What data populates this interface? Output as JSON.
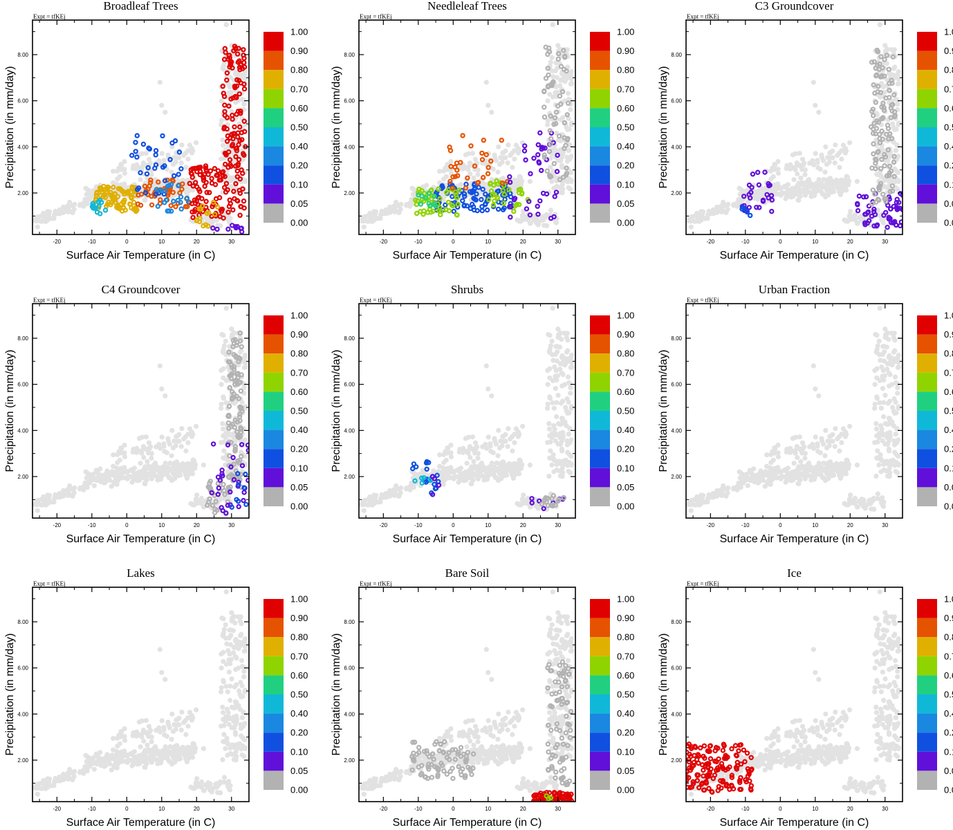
{
  "figure": {
    "expt_label": "Expt = tfKEj",
    "xlabel": "Surface Air Temperature (in C)",
    "ylabel": "Precipitation (in mm/day)",
    "x_ticks": [
      "-20",
      "-10",
      "0",
      "10",
      "20",
      "30"
    ],
    "y_ticks": [
      "2.00",
      "4.00",
      "6.00",
      "8.00"
    ],
    "xlim": [
      -27,
      35
    ],
    "ylim": [
      0.2,
      9.5
    ],
    "colorbar": {
      "labels": [
        "1.00",
        "0.90",
        "0.80",
        "0.70",
        "0.60",
        "0.50",
        "0.40",
        "0.20",
        "0.10",
        "0.05",
        "0.00"
      ],
      "colors": [
        "#e00000",
        "#e65300",
        "#e0b000",
        "#8fd400",
        "#20d080",
        "#10b8d8",
        "#1a88e0",
        "#1050e0",
        "#6010d8",
        "#b2b2b2"
      ]
    },
    "background_color": "#e2e2e2"
  },
  "chart_data": [
    {
      "type": "scatter",
      "title": "Broadleaf Trees",
      "xlabel": "Surface Air Temperature (in C)",
      "ylabel": "Precipitation (in mm/day)",
      "xlim": [
        -27,
        35
      ],
      "ylim": [
        0.2,
        9.5
      ],
      "clusters": [
        {
          "x": [
            -9,
            3
          ],
          "y": [
            1.2,
            2.3
          ],
          "value": 0.8,
          "n": 90
        },
        {
          "x": [
            3,
            18
          ],
          "y": [
            1.4,
            2.6
          ],
          "value": 0.85,
          "n": 50
        },
        {
          "x": [
            -10,
            -6
          ],
          "y": [
            1.1,
            1.7
          ],
          "value": 0.45,
          "n": 14
        },
        {
          "x": [
            0,
            16
          ],
          "y": [
            1.8,
            4.5
          ],
          "value": 0.15,
          "n": 32
        },
        {
          "x": [
            5,
            18
          ],
          "y": [
            1.2,
            2.4
          ],
          "value": 0.4,
          "n": 22
        },
        {
          "x": [
            18,
            34
          ],
          "y": [
            0.9,
            3.2
          ],
          "value": 0.95,
          "n": 110
        },
        {
          "x": [
            27.5,
            34
          ],
          "y": [
            3.0,
            8.4
          ],
          "value": 0.95,
          "n": 100
        },
        {
          "x": [
            20,
            26
          ],
          "y": [
            0.5,
            1.6
          ],
          "value": 0.75,
          "n": 15
        },
        {
          "x": [
            23,
            33
          ],
          "y": [
            0.3,
            0.6
          ],
          "value": 0.1,
          "n": 10
        }
      ]
    },
    {
      "type": "scatter",
      "title": "Needleleaf Trees",
      "xlabel": "Surface Air Temperature (in C)",
      "ylabel": "Precipitation (in mm/day)",
      "xlim": [
        -27,
        35
      ],
      "ylim": [
        0.2,
        9.5
      ],
      "clusters": [
        {
          "x": [
            -6,
            17
          ],
          "y": [
            1.2,
            2.4
          ],
          "value": 0.15,
          "n": 95
        },
        {
          "x": [
            -11,
            2
          ],
          "y": [
            1.0,
            2.2
          ],
          "value": 0.7,
          "n": 55
        },
        {
          "x": [
            10,
            22
          ],
          "y": [
            1.2,
            2.6
          ],
          "value": 0.7,
          "n": 30
        },
        {
          "x": [
            -2,
            16
          ],
          "y": [
            2.2,
            4.5
          ],
          "value": 0.85,
          "n": 30
        },
        {
          "x": [
            -10,
            -5
          ],
          "y": [
            1.3,
            2.0
          ],
          "value": 0.6,
          "n": 10
        },
        {
          "x": [
            16,
            30
          ],
          "y": [
            0.8,
            4.8
          ],
          "value": 0.07,
          "n": 40
        },
        {
          "x": [
            26,
            33
          ],
          "y": [
            2.5,
            8.5
          ],
          "value": 0.0,
          "n": 60
        }
      ]
    },
    {
      "type": "scatter",
      "title": "C3 Groundcover",
      "xlabel": "Surface Air Temperature (in C)",
      "ylabel": "Precipitation (in mm/day)",
      "xlim": [
        -27,
        35
      ],
      "ylim": [
        0.2,
        9.5
      ],
      "clusters": [
        {
          "x": [
            -11,
            -2
          ],
          "y": [
            1.0,
            2.9
          ],
          "value": 0.07,
          "n": 28
        },
        {
          "x": [
            22,
            35
          ],
          "y": [
            0.5,
            2.0
          ],
          "value": 0.07,
          "n": 55
        },
        {
          "x": [
            -11,
            -8
          ],
          "y": [
            1.0,
            1.6
          ],
          "value": 0.15,
          "n": 6
        },
        {
          "x": [
            26,
            33
          ],
          "y": [
            1.5,
            8.3
          ],
          "value": 0.0,
          "n": 110
        }
      ]
    },
    {
      "type": "scatter",
      "title": "C4 Groundcover",
      "xlabel": "Surface Air Temperature (in C)",
      "ylabel": "Precipitation (in mm/day)",
      "xlim": [
        -27,
        35
      ],
      "ylim": [
        0.2,
        9.5
      ],
      "clusters": [
        {
          "x": [
            29,
            33
          ],
          "y": [
            1.5,
            8.3
          ],
          "value": 0.0,
          "n": 100
        },
        {
          "x": [
            23,
            30
          ],
          "y": [
            0.4,
            1.8
          ],
          "value": 0.0,
          "n": 30
        },
        {
          "x": [
            24,
            35
          ],
          "y": [
            0.4,
            3.5
          ],
          "value": 0.07,
          "n": 30
        },
        {
          "x": [
            30,
            35
          ],
          "y": [
            0.6,
            2.2
          ],
          "value": 0.15,
          "n": 8
        }
      ]
    },
    {
      "type": "scatter",
      "title": "Shrubs",
      "xlabel": "Surface Air Temperature (in C)",
      "ylabel": "Precipitation (in mm/day)",
      "xlim": [
        -27,
        35
      ],
      "ylim": [
        0.2,
        9.5
      ],
      "clusters": [
        {
          "x": [
            -12,
            -4
          ],
          "y": [
            1.2,
            2.7
          ],
          "value": 0.15,
          "n": 18
        },
        {
          "x": [
            -11,
            -6
          ],
          "y": [
            1.3,
            2.0
          ],
          "value": 0.45,
          "n": 6
        },
        {
          "x": [
            -6,
            -4
          ],
          "y": [
            1.2,
            2.0
          ],
          "value": 0.07,
          "n": 4
        },
        {
          "x": [
            22,
            32
          ],
          "y": [
            0.5,
            1.2
          ],
          "value": 0.07,
          "n": 8
        },
        {
          "x": [
            24,
            32
          ],
          "y": [
            0.7,
            1.2
          ],
          "value": 0.0,
          "n": 15
        }
      ]
    },
    {
      "type": "scatter",
      "title": "Urban Fraction",
      "xlabel": "Surface Air Temperature (in C)",
      "ylabel": "Precipitation (in mm/day)",
      "xlim": [
        -27,
        35
      ],
      "ylim": [
        0.2,
        9.5
      ],
      "clusters": []
    },
    {
      "type": "scatter",
      "title": "Lakes",
      "xlabel": "Surface Air Temperature (in C)",
      "ylabel": "Precipitation (in mm/day)",
      "xlim": [
        -27,
        35
      ],
      "ylim": [
        0.2,
        9.5
      ],
      "clusters": []
    },
    {
      "type": "scatter",
      "title": "Bare Soil",
      "xlabel": "Surface Air Temperature (in C)",
      "ylabel": "Precipitation (in mm/day)",
      "xlim": [
        -27,
        35
      ],
      "ylim": [
        0.2,
        9.5
      ],
      "clusters": [
        {
          "x": [
            -12,
            6
          ],
          "y": [
            1.2,
            2.8
          ],
          "value": 0.0,
          "n": 80
        },
        {
          "x": [
            27,
            34
          ],
          "y": [
            0.8,
            6.3
          ],
          "value": 0.0,
          "n": 80
        },
        {
          "x": [
            23,
            34
          ],
          "y": [
            0.2,
            0.6
          ],
          "value": 0.95,
          "n": 70
        },
        {
          "x": [
            26,
            28
          ],
          "y": [
            0.3,
            0.5
          ],
          "value": 0.7,
          "n": 3
        }
      ]
    },
    {
      "type": "scatter",
      "title": "Ice",
      "xlabel": "Surface Air Temperature (in C)",
      "ylabel": "Precipitation (in mm/day)",
      "xlim": [
        -27,
        35
      ],
      "ylim": [
        0.2,
        9.5
      ],
      "clusters": [
        {
          "x": [
            -27,
            -8
          ],
          "y": [
            0.6,
            2.7
          ],
          "value": 0.95,
          "n": 150
        }
      ]
    }
  ]
}
